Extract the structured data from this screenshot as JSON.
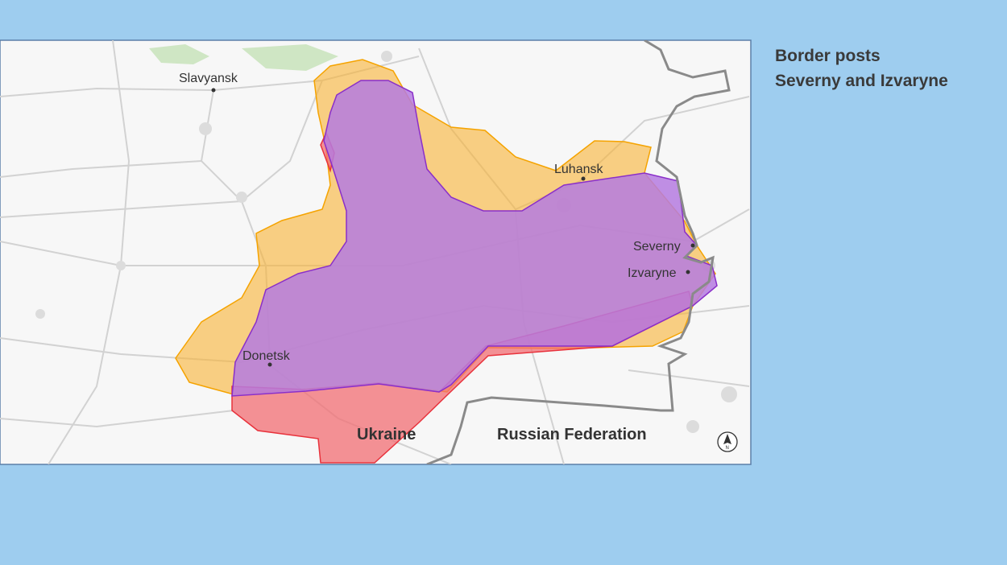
{
  "title": {
    "line1": "Border posts",
    "line2": "Severny and Izvaryne"
  },
  "map": {
    "places": {
      "slavyansk": "Slavyansk",
      "luhansk": "Luhansk",
      "severny": "Severny",
      "izvaryne": "Izvaryne",
      "donetsk": "Donetsk"
    },
    "countries": {
      "ukraine": "Ukraine",
      "russia": "Russian Federation"
    },
    "north_label": "N",
    "colors": {
      "orange_area": "#f9b233",
      "red_area": "#f26d73",
      "purple_area": "#b57be0",
      "border": "#8a8a8a",
      "background": "#9ecdef"
    }
  }
}
